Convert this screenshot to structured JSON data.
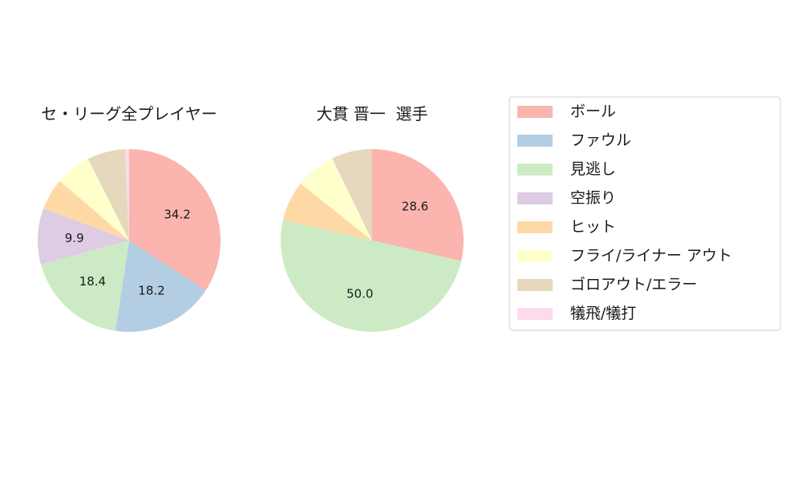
{
  "chart_data": [
    {
      "type": "pie",
      "title": "セ・リーグ全プレイヤー",
      "categories": [
        "ボール",
        "ファウル",
        "見逃し",
        "空振り",
        "ヒット",
        "フライ/ライナー アウト",
        "ゴロアウト/エラー",
        "犠飛/犠打"
      ],
      "values": [
        34.2,
        18.2,
        18.4,
        9.9,
        5.6,
        6.3,
        6.7,
        0.7
      ],
      "data_labels": [
        "34.2",
        "18.2",
        "18.4",
        "9.9",
        "",
        "",
        "",
        ""
      ],
      "start_angle": "top",
      "direction": "clockwise"
    },
    {
      "type": "pie",
      "title": "大貫 晋一  選手",
      "categories": [
        "ボール",
        "ファウル",
        "見逃し",
        "空振り",
        "ヒット",
        "フライ/ライナー アウト",
        "ゴロアウト/エラー",
        "犠飛/犠打"
      ],
      "values": [
        28.6,
        0,
        50.0,
        0,
        7.1,
        7.1,
        7.2,
        0
      ],
      "data_labels": [
        "28.6",
        "",
        "50.0",
        "",
        "",
        "",
        "",
        ""
      ],
      "start_angle": "top",
      "direction": "clockwise"
    }
  ],
  "legend": {
    "placement": "right",
    "items": [
      {
        "label": "ボール",
        "color": "#fbb4ae"
      },
      {
        "label": "ファウル",
        "color": "#b3cde3"
      },
      {
        "label": "見逃し",
        "color": "#ccebc5"
      },
      {
        "label": "空振り",
        "color": "#decbe4"
      },
      {
        "label": "ヒット",
        "color": "#fed9a6"
      },
      {
        "label": "フライ/ライナー アウト",
        "color": "#ffffcc"
      },
      {
        "label": "ゴロアウト/エラー",
        "color": "#e5d8bd"
      },
      {
        "label": "犠飛/犠打",
        "color": "#fddaec"
      }
    ]
  }
}
